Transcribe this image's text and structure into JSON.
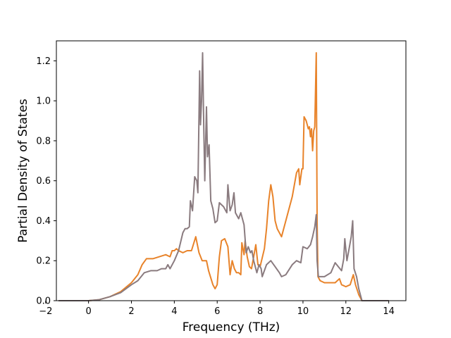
{
  "chart_data": {
    "type": "line",
    "title": "",
    "xlabel": "Frequency (THz)",
    "ylabel": "Partial Density of States",
    "xlim": [
      -1.5,
      14.8
    ],
    "ylim": [
      0.0,
      1.3
    ],
    "xticks": [
      -2,
      0,
      2,
      4,
      6,
      8,
      10,
      12,
      14
    ],
    "xtick_labels": [
      "−2",
      "0",
      "2",
      "4",
      "6",
      "8",
      "10",
      "12",
      "14"
    ],
    "yticks": [
      0.0,
      0.2,
      0.4,
      0.6,
      0.8,
      1.0,
      1.2
    ],
    "ytick_labels": [
      "0.0",
      "0.2",
      "0.4",
      "0.6",
      "0.8",
      "1.0",
      "1.2"
    ],
    "grid": false,
    "legend": false,
    "series": [
      {
        "color": "#E8832A",
        "points": [
          [
            -1.4,
            0.0
          ],
          [
            0.0,
            0.0
          ],
          [
            0.5,
            0.005
          ],
          [
            1.0,
            0.02
          ],
          [
            1.5,
            0.045
          ],
          [
            2.0,
            0.09
          ],
          [
            2.3,
            0.13
          ],
          [
            2.5,
            0.18
          ],
          [
            2.7,
            0.21
          ],
          [
            3.0,
            0.21
          ],
          [
            3.3,
            0.22
          ],
          [
            3.6,
            0.23
          ],
          [
            3.8,
            0.22
          ],
          [
            3.9,
            0.25
          ],
          [
            4.0,
            0.25
          ],
          [
            4.1,
            0.26
          ],
          [
            4.2,
            0.25
          ],
          [
            4.4,
            0.24
          ],
          [
            4.6,
            0.25
          ],
          [
            4.8,
            0.25
          ],
          [
            5.0,
            0.32
          ],
          [
            5.15,
            0.24
          ],
          [
            5.3,
            0.2
          ],
          [
            5.5,
            0.2
          ],
          [
            5.6,
            0.15
          ],
          [
            5.8,
            0.08
          ],
          [
            5.9,
            0.06
          ],
          [
            6.0,
            0.08
          ],
          [
            6.1,
            0.22
          ],
          [
            6.2,
            0.3
          ],
          [
            6.35,
            0.31
          ],
          [
            6.5,
            0.27
          ],
          [
            6.6,
            0.13
          ],
          [
            6.7,
            0.2
          ],
          [
            6.8,
            0.16
          ],
          [
            6.9,
            0.14
          ],
          [
            7.0,
            0.14
          ],
          [
            7.1,
            0.13
          ],
          [
            7.15,
            0.29
          ],
          [
            7.25,
            0.23
          ],
          [
            7.3,
            0.3
          ],
          [
            7.4,
            0.22
          ],
          [
            7.5,
            0.17
          ],
          [
            7.6,
            0.16
          ],
          [
            7.7,
            0.22
          ],
          [
            7.8,
            0.28
          ],
          [
            7.9,
            0.18
          ],
          [
            8.0,
            0.17
          ],
          [
            8.2,
            0.26
          ],
          [
            8.3,
            0.36
          ],
          [
            8.4,
            0.5
          ],
          [
            8.5,
            0.58
          ],
          [
            8.6,
            0.52
          ],
          [
            8.7,
            0.4
          ],
          [
            8.8,
            0.36
          ],
          [
            9.0,
            0.32
          ],
          [
            9.2,
            0.4
          ],
          [
            9.5,
            0.52
          ],
          [
            9.7,
            0.64
          ],
          [
            9.8,
            0.66
          ],
          [
            9.85,
            0.58
          ],
          [
            9.95,
            0.66
          ],
          [
            10.0,
            0.66
          ],
          [
            10.05,
            0.92
          ],
          [
            10.15,
            0.9
          ],
          [
            10.25,
            0.86
          ],
          [
            10.3,
            0.87
          ],
          [
            10.35,
            0.82
          ],
          [
            10.4,
            0.86
          ],
          [
            10.45,
            0.75
          ],
          [
            10.5,
            0.85
          ],
          [
            10.55,
            0.87
          ],
          [
            10.62,
            1.24
          ],
          [
            10.66,
            0.4
          ],
          [
            10.7,
            0.12
          ],
          [
            10.8,
            0.1
          ],
          [
            11.0,
            0.09
          ],
          [
            11.5,
            0.09
          ],
          [
            11.7,
            0.11
          ],
          [
            11.8,
            0.08
          ],
          [
            12.0,
            0.07
          ],
          [
            12.2,
            0.08
          ],
          [
            12.35,
            0.13
          ],
          [
            12.45,
            0.08
          ],
          [
            12.6,
            0.03
          ],
          [
            12.75,
            0.0
          ],
          [
            14.0,
            0.0
          ]
        ]
      },
      {
        "color": "#8A7B7F",
        "points": [
          [
            -1.4,
            0.0
          ],
          [
            0.0,
            0.0
          ],
          [
            0.5,
            0.005
          ],
          [
            1.0,
            0.02
          ],
          [
            1.5,
            0.04
          ],
          [
            2.0,
            0.08
          ],
          [
            2.3,
            0.1
          ],
          [
            2.6,
            0.14
          ],
          [
            2.9,
            0.15
          ],
          [
            3.2,
            0.15
          ],
          [
            3.4,
            0.16
          ],
          [
            3.6,
            0.16
          ],
          [
            3.7,
            0.18
          ],
          [
            3.8,
            0.16
          ],
          [
            4.0,
            0.2
          ],
          [
            4.2,
            0.25
          ],
          [
            4.4,
            0.34
          ],
          [
            4.5,
            0.36
          ],
          [
            4.6,
            0.36
          ],
          [
            4.7,
            0.37
          ],
          [
            4.75,
            0.5
          ],
          [
            4.85,
            0.45
          ],
          [
            4.95,
            0.62
          ],
          [
            5.05,
            0.6
          ],
          [
            5.1,
            0.54
          ],
          [
            5.18,
            1.15
          ],
          [
            5.22,
            0.88
          ],
          [
            5.27,
            1.0
          ],
          [
            5.32,
            1.24
          ],
          [
            5.37,
            0.88
          ],
          [
            5.42,
            0.6
          ],
          [
            5.5,
            0.97
          ],
          [
            5.55,
            0.72
          ],
          [
            5.62,
            0.78
          ],
          [
            5.7,
            0.5
          ],
          [
            5.8,
            0.46
          ],
          [
            5.9,
            0.39
          ],
          [
            6.0,
            0.4
          ],
          [
            6.1,
            0.49
          ],
          [
            6.3,
            0.47
          ],
          [
            6.45,
            0.44
          ],
          [
            6.5,
            0.58
          ],
          [
            6.6,
            0.45
          ],
          [
            6.7,
            0.48
          ],
          [
            6.78,
            0.54
          ],
          [
            6.85,
            0.44
          ],
          [
            7.0,
            0.41
          ],
          [
            7.1,
            0.44
          ],
          [
            7.25,
            0.38
          ],
          [
            7.35,
            0.24
          ],
          [
            7.45,
            0.27
          ],
          [
            7.55,
            0.24
          ],
          [
            7.62,
            0.25
          ],
          [
            7.7,
            0.2
          ],
          [
            7.85,
            0.14
          ],
          [
            7.95,
            0.18
          ],
          [
            8.05,
            0.16
          ],
          [
            8.1,
            0.12
          ],
          [
            8.3,
            0.18
          ],
          [
            8.5,
            0.2
          ],
          [
            8.7,
            0.17
          ],
          [
            8.9,
            0.14
          ],
          [
            9.0,
            0.12
          ],
          [
            9.2,
            0.13
          ],
          [
            9.5,
            0.18
          ],
          [
            9.7,
            0.2
          ],
          [
            9.9,
            0.19
          ],
          [
            10.0,
            0.27
          ],
          [
            10.2,
            0.26
          ],
          [
            10.35,
            0.28
          ],
          [
            10.45,
            0.32
          ],
          [
            10.55,
            0.37
          ],
          [
            10.62,
            0.43
          ],
          [
            10.66,
            0.2
          ],
          [
            10.72,
            0.12
          ],
          [
            11.0,
            0.12
          ],
          [
            11.3,
            0.14
          ],
          [
            11.5,
            0.19
          ],
          [
            11.65,
            0.17
          ],
          [
            11.8,
            0.15
          ],
          [
            11.9,
            0.21
          ],
          [
            11.95,
            0.31
          ],
          [
            12.05,
            0.2
          ],
          [
            12.15,
            0.26
          ],
          [
            12.25,
            0.32
          ],
          [
            12.32,
            0.4
          ],
          [
            12.38,
            0.16
          ],
          [
            12.5,
            0.12
          ],
          [
            12.6,
            0.06
          ],
          [
            12.75,
            0.0
          ],
          [
            14.0,
            0.0
          ]
        ]
      }
    ]
  }
}
